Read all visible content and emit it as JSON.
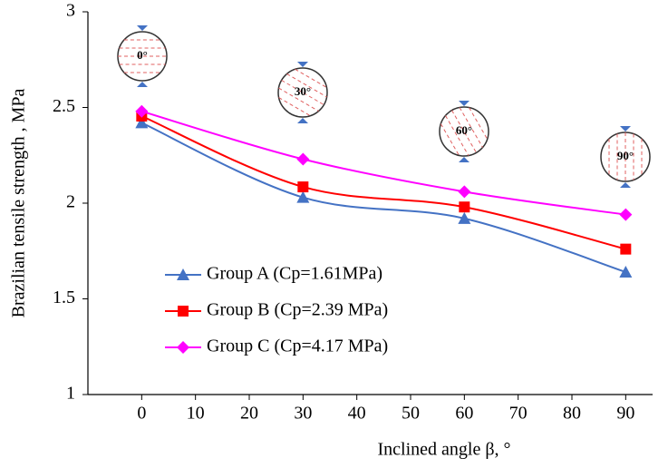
{
  "chart_data": {
    "type": "line",
    "x_label": "Inclined angle β, °",
    "y_label": "Brazilian tensile strength , MPa",
    "x": [
      0,
      30,
      60,
      90
    ],
    "series": [
      {
        "name": "Group A (Cp=1.61MPa)",
        "color": "#4472c4",
        "marker": "triangle",
        "values": [
          2.42,
          2.03,
          1.92,
          1.64
        ]
      },
      {
        "name": "Group B (Cp=2.39 MPa)",
        "color": "#ff0000",
        "marker": "square",
        "values": [
          2.455,
          2.085,
          1.98,
          1.76
        ]
      },
      {
        "name": "Group C (Cp=4.17 MPa)",
        "color": "#ff00ff",
        "marker": "diamond",
        "values": [
          2.48,
          2.23,
          2.06,
          1.94
        ]
      }
    ],
    "xlim": [
      -10,
      95
    ],
    "xticks": [
      0,
      10,
      20,
      30,
      40,
      50,
      60,
      70,
      80,
      90
    ],
    "ylim": [
      1,
      3
    ],
    "yticks": [
      1,
      1.5,
      2,
      2.5,
      3
    ],
    "grid": false,
    "smooth": true,
    "legend": "lower left",
    "annotations": [
      "0°",
      "30°",
      "60°",
      "90°"
    ]
  }
}
